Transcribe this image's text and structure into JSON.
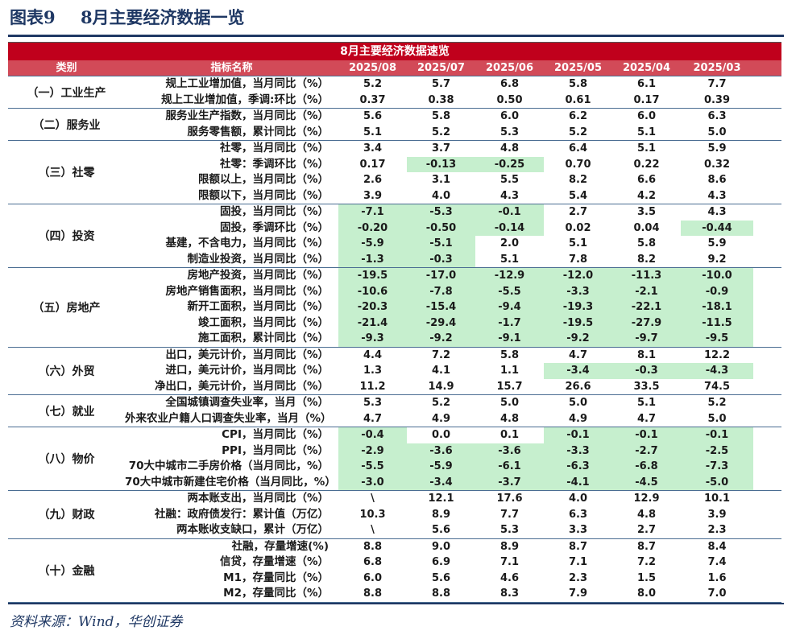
{
  "figure": {
    "label": "图表9",
    "title": "8月主要经济数据一览"
  },
  "table": {
    "banner": "8月主要经济数据速览",
    "header": {
      "category": "类别",
      "indicator": "指标名称",
      "periods": [
        "2025/08",
        "2025/07",
        "2025/06",
        "2025/05",
        "2025/04",
        "2025/03"
      ]
    },
    "highlight_color": "#c6efce",
    "groups": [
      {
        "name": "（一）工业生产",
        "rows": [
          {
            "label": "规上工业增加值，当月同比（%）",
            "values": [
              "5.2",
              "5.7",
              "6.8",
              "5.8",
              "6.1",
              "7.7"
            ],
            "green": []
          },
          {
            "label": "规上工业增加值，季调:环比（%）",
            "values": [
              "0.37",
              "0.38",
              "0.50",
              "0.61",
              "0.17",
              "0.39"
            ],
            "green": []
          }
        ]
      },
      {
        "name": "（二）服务业",
        "rows": [
          {
            "label": "服务业生产指数，当月同比（%）",
            "values": [
              "5.6",
              "5.8",
              "6.0",
              "6.2",
              "6.0",
              "6.3"
            ],
            "green": []
          },
          {
            "label": "服务零售额，累计同比（%）",
            "values": [
              "5.1",
              "5.2",
              "5.3",
              "5.2",
              "5.1",
              "5.0"
            ],
            "green": []
          }
        ]
      },
      {
        "name": "（三）社零",
        "rows": [
          {
            "label": "社零，当月同比（%）",
            "values": [
              "3.4",
              "3.7",
              "4.8",
              "6.4",
              "5.1",
              "5.9"
            ],
            "green": []
          },
          {
            "label": "社零：季调环比（%）",
            "values": [
              "0.17",
              "-0.13",
              "-0.25",
              "0.70",
              "0.22",
              "0.32"
            ],
            "green": [
              1,
              2
            ]
          },
          {
            "label": "限额以上，当月同比（%）",
            "values": [
              "2.6",
              "3.1",
              "5.5",
              "8.2",
              "6.6",
              "8.6"
            ],
            "green": []
          },
          {
            "label": "限额以下，当月同比（%）",
            "values": [
              "3.9",
              "4.0",
              "4.3",
              "5.4",
              "4.2",
              "4.3"
            ],
            "green": []
          }
        ]
      },
      {
        "name": "（四）投资",
        "rows": [
          {
            "label": "固投，当月同比（%）",
            "values": [
              "-7.1",
              "-5.3",
              "-0.1",
              "2.7",
              "3.5",
              "4.3"
            ],
            "green": [
              0,
              1,
              2
            ]
          },
          {
            "label": "固投，季调环比（%）",
            "values": [
              "-0.20",
              "-0.50",
              "-0.14",
              "0.02",
              "0.04",
              "-0.44"
            ],
            "green": [
              0,
              1,
              2,
              5
            ]
          },
          {
            "label": "基建，不含电力，当月同比（%）",
            "values": [
              "-5.9",
              "-5.1",
              "2.0",
              "5.1",
              "5.8",
              "5.9"
            ],
            "green": [
              0,
              1
            ]
          },
          {
            "label": "制造业投资，当月同比（%）",
            "values": [
              "-1.3",
              "-0.3",
              "5.1",
              "7.8",
              "8.2",
              "9.2"
            ],
            "green": [
              0,
              1
            ]
          }
        ]
      },
      {
        "name": "（五）房地产",
        "rows": [
          {
            "label": "房地产投资，当月同比（%）",
            "values": [
              "-19.5",
              "-17.0",
              "-12.9",
              "-12.0",
              "-11.3",
              "-10.0"
            ],
            "green": [
              0,
              1,
              2,
              3,
              4,
              5
            ]
          },
          {
            "label": "房地产销售面积，当月同比（%）",
            "values": [
              "-10.6",
              "-7.8",
              "-5.5",
              "-3.3",
              "-2.1",
              "-0.9"
            ],
            "green": [
              0,
              1,
              2,
              3,
              4,
              5
            ]
          },
          {
            "label": "新开工面积，当月同比（%）",
            "values": [
              "-20.3",
              "-15.4",
              "-9.4",
              "-19.3",
              "-22.1",
              "-18.1"
            ],
            "green": [
              0,
              1,
              2,
              3,
              4,
              5
            ]
          },
          {
            "label": "竣工面积，当月同比（%）",
            "values": [
              "-21.4",
              "-29.4",
              "-1.7",
              "-19.5",
              "-27.9",
              "-11.5"
            ],
            "green": [
              0,
              1,
              2,
              3,
              4,
              5
            ]
          },
          {
            "label": "施工面积，累计同比（%）",
            "values": [
              "-9.3",
              "-9.2",
              "-9.1",
              "-9.2",
              "-9.7",
              "-9.5"
            ],
            "green": [
              0,
              1,
              2,
              3,
              4,
              5
            ]
          }
        ]
      },
      {
        "name": "（六）外贸",
        "rows": [
          {
            "label": "出口，美元计价，当月同比（%）",
            "values": [
              "4.4",
              "7.2",
              "5.8",
              "4.7",
              "8.1",
              "12.2"
            ],
            "green": []
          },
          {
            "label": "进口，美元计价，当月同比（%）",
            "values": [
              "1.3",
              "4.1",
              "1.1",
              "-3.4",
              "-0.3",
              "-4.3"
            ],
            "green": [
              3,
              4,
              5
            ]
          },
          {
            "label": "净出口，美元计价，当月同比（%）",
            "values": [
              "11.2",
              "14.9",
              "15.7",
              "26.6",
              "33.5",
              "74.5"
            ],
            "green": []
          }
        ]
      },
      {
        "name": "（七）就业",
        "rows": [
          {
            "label": "全国城镇调查失业率，当月（%）",
            "values": [
              "5.3",
              "5.2",
              "5.0",
              "5.0",
              "5.1",
              "5.2"
            ],
            "green": []
          },
          {
            "label": "外来农业户籍人口调查失业率，当月（%）",
            "values": [
              "4.7",
              "4.9",
              "4.8",
              "4.9",
              "4.7",
              "5.0"
            ],
            "green": []
          }
        ]
      },
      {
        "name": "（八）物价",
        "rows": [
          {
            "label": "CPI，当月同比（%）",
            "values": [
              "-0.4",
              "0.0",
              "0.1",
              "-0.1",
              "-0.1",
              "-0.1"
            ],
            "green": [
              0,
              3,
              4,
              5
            ]
          },
          {
            "label": "PPI，当月同比（%）",
            "values": [
              "-2.9",
              "-3.6",
              "-3.6",
              "-3.3",
              "-2.7",
              "-2.5"
            ],
            "green": [
              0,
              1,
              2,
              3,
              4,
              5
            ]
          },
          {
            "label": "70大中城市二手房价格（当月同比，%）",
            "values": [
              "-5.5",
              "-5.9",
              "-6.1",
              "-6.3",
              "-6.8",
              "-7.3"
            ],
            "green": [
              0,
              1,
              2,
              3,
              4,
              5
            ]
          },
          {
            "label": "70大中城市新建住宅价格（当月同比，%）",
            "values": [
              "-3.0",
              "-3.4",
              "-3.7",
              "-4.1",
              "-4.5",
              "-5.0"
            ],
            "green": [
              0,
              1,
              2,
              3,
              4,
              5
            ]
          }
        ]
      },
      {
        "name": "（九）财政",
        "rows": [
          {
            "label": "两本账支出，当月同比（%）",
            "values": [
              "\\",
              "12.1",
              "17.6",
              "4.0",
              "12.9",
              "10.1"
            ],
            "green": []
          },
          {
            "label": "社融：政府债发行：累计值（万亿）",
            "values": [
              "10.3",
              "8.9",
              "7.7",
              "6.3",
              "4.8",
              "3.9"
            ],
            "green": []
          },
          {
            "label": "两本账收支缺口，累计（万亿）",
            "values": [
              "\\",
              "5.6",
              "5.3",
              "3.3",
              "2.7",
              "2.3"
            ],
            "green": []
          }
        ]
      },
      {
        "name": "（十）金融",
        "rows": [
          {
            "label": "社融，存量增速(%)",
            "values": [
              "8.8",
              "9.0",
              "8.9",
              "8.7",
              "8.7",
              "8.4"
            ],
            "green": []
          },
          {
            "label": "信贷，存量增速（%）",
            "values": [
              "6.8",
              "6.9",
              "7.1",
              "7.1",
              "7.2",
              "7.4"
            ],
            "green": []
          },
          {
            "label": "M1，存量同比（%）",
            "values": [
              "6.0",
              "5.6",
              "4.6",
              "2.3",
              "1.5",
              "1.6"
            ],
            "green": []
          },
          {
            "label": "M2，存量同比（%）",
            "values": [
              "8.8",
              "8.8",
              "8.3",
              "7.9",
              "8.0",
              "7.0"
            ],
            "green": []
          }
        ]
      }
    ]
  },
  "source": "资料来源：Wind，华创证券"
}
